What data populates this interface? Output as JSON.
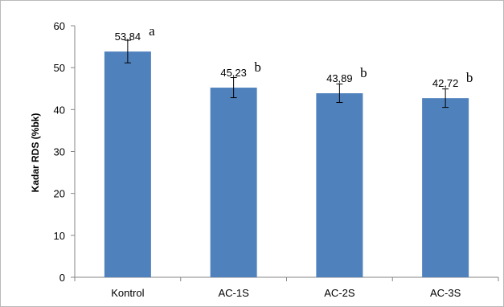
{
  "chart_data": {
    "type": "bar",
    "categories": [
      "Kontrol",
      "AC-1S",
      "AC-2S",
      "AC-3S"
    ],
    "values": [
      53.84,
      45.23,
      43.89,
      42.72
    ],
    "value_labels": [
      "53,84",
      "45,23",
      "43,89",
      "42,72"
    ],
    "error": [
      2.7,
      2.4,
      2.2,
      2.2
    ],
    "significance": [
      "a",
      "b",
      "b",
      "b"
    ],
    "ylabel": "Kadar RDS (%bk)",
    "xlabel": "",
    "ylim": [
      0,
      60
    ],
    "yticks": [
      "0",
      "10",
      "20",
      "30",
      "40",
      "50",
      "60"
    ],
    "bar_color": "#4f81bd",
    "grid": false,
    "legend": "none"
  }
}
